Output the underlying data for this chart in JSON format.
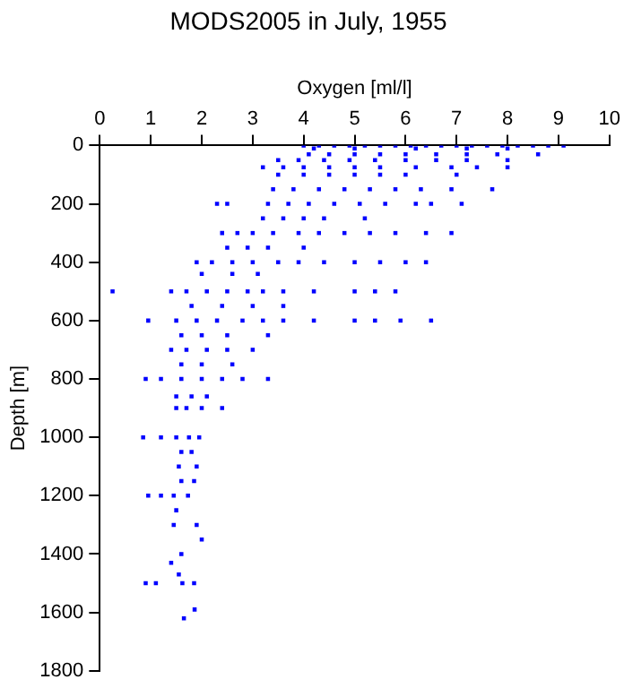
{
  "chart_data": {
    "type": "scatter",
    "title": "MODS2005 in July, 1955",
    "xlabel": "Oxygen [ml/l]",
    "ylabel": "Depth [m]",
    "xlim": [
      0,
      10
    ],
    "xticks": [
      0,
      1,
      2,
      3,
      4,
      5,
      6,
      7,
      8,
      9,
      10
    ],
    "ylim": [
      1800,
      0
    ],
    "yticks": [
      0,
      200,
      400,
      600,
      800,
      1000,
      1200,
      1400,
      1600,
      1800
    ],
    "grid": false,
    "legend": false,
    "marker": "square",
    "series": [
      {
        "color": "#0000ff",
        "x": [
          4.0,
          4.3,
          4.6,
          4.9,
          5.2,
          5.5,
          5.8,
          6.1,
          6.4,
          6.7,
          7.0,
          7.3,
          7.6,
          7.9,
          8.2,
          8.5,
          8.8,
          9.1,
          4.2,
          5.0,
          6.2,
          7.2,
          8.0,
          4.1,
          4.5,
          5.0,
          5.5,
          6.0,
          6.6,
          7.2,
          7.8,
          8.6,
          3.5,
          3.9,
          4.4,
          4.9,
          5.4,
          6.0,
          6.6,
          7.2,
          8.0,
          3.2,
          3.6,
          4.0,
          4.5,
          5.0,
          5.5,
          6.2,
          6.9,
          7.4,
          8.0,
          3.5,
          4.0,
          4.5,
          5.0,
          5.5,
          6.0,
          7.0,
          3.4,
          3.8,
          4.3,
          4.8,
          5.3,
          5.8,
          6.3,
          6.9,
          7.7,
          2.3,
          2.5,
          3.3,
          3.7,
          4.1,
          4.6,
          5.1,
          5.6,
          6.2,
          6.5,
          7.1,
          3.2,
          3.6,
          4.0,
          4.4,
          5.2,
          2.4,
          2.7,
          3.0,
          3.4,
          3.9,
          4.3,
          4.8,
          5.3,
          5.8,
          6.4,
          6.9,
          2.5,
          2.9,
          3.3,
          4.0,
          1.9,
          2.2,
          2.6,
          3.0,
          3.5,
          3.9,
          4.4,
          5.0,
          5.5,
          6.0,
          6.4,
          2.0,
          2.6,
          3.1,
          0.25,
          1.4,
          1.7,
          2.1,
          2.5,
          2.9,
          3.2,
          3.6,
          4.2,
          5.0,
          5.4,
          5.8,
          1.8,
          2.4,
          3.0,
          3.6,
          0.95,
          1.5,
          1.9,
          2.3,
          2.8,
          3.2,
          3.6,
          4.2,
          5.0,
          5.4,
          5.9,
          6.5,
          1.6,
          2.0,
          2.5,
          3.3,
          1.4,
          1.7,
          2.1,
          2.5,
          3.0,
          1.6,
          2.0,
          2.6,
          0.9,
          1.2,
          1.6,
          2.0,
          2.4,
          2.8,
          3.3,
          1.5,
          1.8,
          2.1,
          1.5,
          1.7,
          2.0,
          2.4,
          0.85,
          1.2,
          1.5,
          1.75,
          1.95,
          1.6,
          1.8,
          1.55,
          1.9,
          1.6,
          1.85,
          0.95,
          1.2,
          1.45,
          1.73,
          1.5,
          1.45,
          1.9,
          2.0,
          1.6,
          1.4,
          1.55,
          0.9,
          1.1,
          1.62,
          1.85,
          1.86,
          1.65
        ],
        "values": [
          0,
          0,
          0,
          0,
          0,
          0,
          0,
          0,
          0,
          0,
          0,
          0,
          0,
          0,
          0,
          0,
          0,
          0,
          10,
          10,
          10,
          10,
          10,
          30,
          30,
          30,
          30,
          30,
          30,
          30,
          30,
          30,
          50,
          50,
          50,
          50,
          50,
          50,
          50,
          50,
          50,
          75,
          75,
          75,
          75,
          75,
          75,
          75,
          75,
          75,
          75,
          100,
          100,
          100,
          100,
          100,
          100,
          100,
          150,
          150,
          150,
          150,
          150,
          150,
          150,
          150,
          150,
          200,
          200,
          200,
          200,
          200,
          200,
          200,
          200,
          200,
          200,
          200,
          250,
          250,
          250,
          250,
          250,
          300,
          300,
          300,
          300,
          300,
          300,
          300,
          300,
          300,
          300,
          300,
          350,
          350,
          350,
          350,
          400,
          400,
          400,
          400,
          400,
          400,
          400,
          400,
          400,
          400,
          400,
          440,
          440,
          440,
          500,
          500,
          500,
          500,
          500,
          500,
          500,
          500,
          500,
          500,
          500,
          500,
          550,
          550,
          550,
          550,
          600,
          600,
          600,
          600,
          600,
          600,
          600,
          600,
          600,
          600,
          600,
          600,
          650,
          650,
          650,
          650,
          700,
          700,
          700,
          700,
          700,
          750,
          750,
          750,
          800,
          800,
          800,
          800,
          800,
          800,
          800,
          860,
          860,
          860,
          900,
          900,
          900,
          900,
          1000,
          1000,
          1000,
          1000,
          1000,
          1050,
          1050,
          1100,
          1100,
          1150,
          1150,
          1200,
          1200,
          1200,
          1200,
          1250,
          1300,
          1300,
          1350,
          1400,
          1430,
          1470,
          1500,
          1500,
          1500,
          1500,
          1590,
          1620
        ]
      }
    ]
  }
}
